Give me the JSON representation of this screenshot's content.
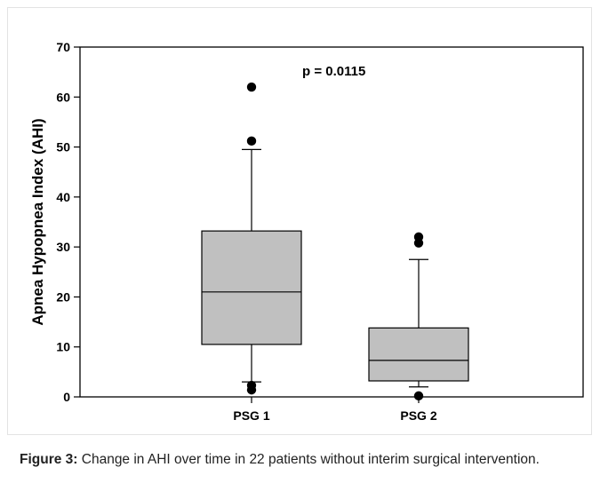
{
  "chart_data": {
    "type": "box",
    "categories": [
      "PSG 1",
      "PSG 2"
    ],
    "ylabel": "Apnea Hypopnea Index (AHI)",
    "ylim": [
      0,
      70
    ],
    "yticks": [
      0,
      10,
      20,
      30,
      40,
      50,
      60,
      70
    ],
    "grid": false,
    "box_fill": "#c0c0c0",
    "boxes": [
      {
        "category": "PSG 1",
        "whisker_low": 3,
        "q1": 10.5,
        "median": 21,
        "q3": 33.2,
        "whisker_high": 49.5,
        "outliers": [
          62,
          51.2,
          2.3,
          1.4
        ]
      },
      {
        "category": "PSG 2",
        "whisker_low": 2,
        "q1": 3.2,
        "median": 7.3,
        "q3": 13.8,
        "whisker_high": 27.5,
        "outliers": [
          32,
          30.8,
          0.2
        ]
      }
    ],
    "annotation": "p = 0.0115"
  },
  "caption": {
    "label": "Figure 3:",
    "text": " Change in AHI over time in 22 patients without interim surgical intervention."
  }
}
